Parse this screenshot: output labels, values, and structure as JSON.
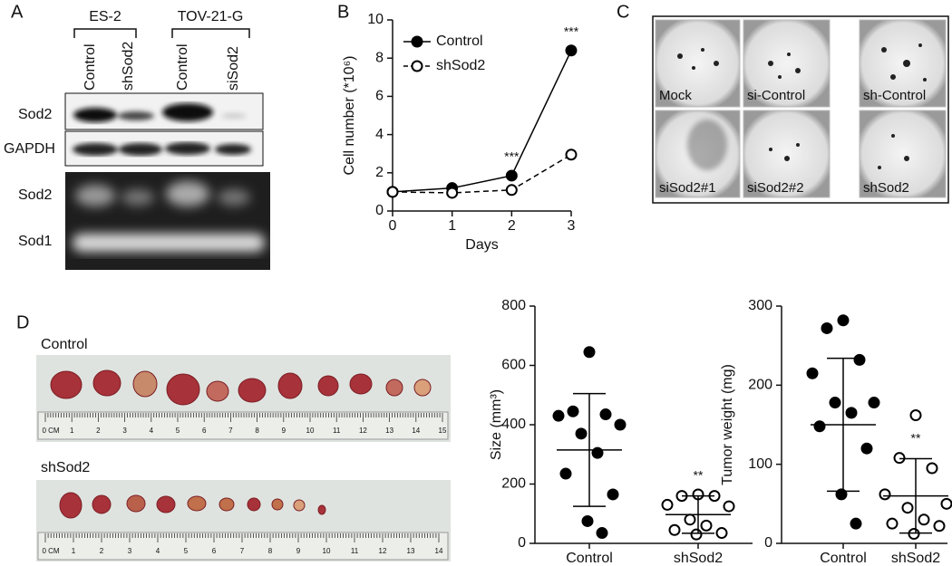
{
  "panel_a": {
    "label": "A",
    "cell_lines": [
      "ES-2",
      "TOV-21-G"
    ],
    "lanes": [
      "Control",
      "shSod2",
      "Control",
      "siSod2"
    ],
    "rows": [
      "Sod2",
      "GAPDH",
      "Sod2",
      "Sod1"
    ]
  },
  "panel_b": {
    "label": "B"
  },
  "panel_c": {
    "label": "C",
    "wells": [
      "Mock",
      "si-Control",
      "sh-Control",
      "siSod2#1",
      "siSod2#2",
      "shSod2"
    ]
  },
  "panel_d": {
    "label": "D",
    "photos": [
      {
        "label": "Control",
        "ruler": [
          "0 CM",
          "1",
          "2",
          "3",
          "4",
          "5",
          "6",
          "7",
          "8",
          "9",
          "10",
          "11",
          "12",
          "13",
          "14",
          "15"
        ]
      },
      {
        "label": "shSod2",
        "ruler": [
          "0 CM",
          "1",
          "2",
          "3",
          "4",
          "5",
          "6",
          "7",
          "8",
          "9",
          "10",
          "11",
          "12",
          "13",
          "14"
        ]
      }
    ]
  },
  "chart_data": [
    {
      "type": "line",
      "x_label": "Days",
      "y_label": "Cell number (*10⁶)",
      "x": [
        0,
        1,
        2,
        3
      ],
      "xlim": [
        0,
        3
      ],
      "xticks": [
        0,
        1,
        2,
        3
      ],
      "ylim": [
        0,
        10
      ],
      "yticks": [
        0,
        2,
        4,
        6,
        8,
        10
      ],
      "series": [
        {
          "name": "Control",
          "color": "#000000",
          "line_style": "solid",
          "marker": "filled",
          "values": [
            1,
            1.2,
            1.85,
            8.4
          ]
        },
        {
          "name": "shSod2",
          "color": "#000000",
          "line_style": "dashed",
          "marker": "open",
          "values": [
            1,
            0.95,
            1.1,
            2.95
          ]
        }
      ],
      "annotations": [
        {
          "text": "***",
          "x": 2
        },
        {
          "text": "***",
          "x": 3
        }
      ]
    },
    {
      "type": "strip",
      "y_label": "Size (mm³)",
      "ylim": [
        0,
        800
      ],
      "yticks": [
        0,
        200,
        400,
        600,
        800
      ],
      "categories": [
        "Control",
        "shSod2"
      ],
      "groups": [
        {
          "marker": "filled",
          "values": [
            645,
            445,
            435,
            430,
            400,
            370,
            305,
            235,
            165,
            75,
            35
          ],
          "mean": 315,
          "sd": 190
        },
        {
          "marker": "open",
          "values": [
            165,
            160,
            160,
            130,
            125,
            80,
            60,
            45,
            35,
            30
          ],
          "mean": 97,
          "sd": 63,
          "annotation": "**"
        }
      ]
    },
    {
      "type": "strip",
      "y_label": "Tumor weight (mg)",
      "ylim": [
        0,
        300
      ],
      "yticks": [
        0,
        100,
        200,
        300
      ],
      "categories": [
        "Control",
        "shSod2"
      ],
      "groups": [
        {
          "marker": "filled",
          "values": [
            282,
            272,
            232,
            215,
            178,
            178,
            165,
            148,
            120,
            62,
            25
          ],
          "mean": 150,
          "sd": 84
        },
        {
          "marker": "open",
          "values": [
            162,
            108,
            95,
            62,
            50,
            45,
            30,
            25,
            22,
            12
          ],
          "mean": 60,
          "sd": 47,
          "annotation": "**"
        }
      ]
    }
  ]
}
